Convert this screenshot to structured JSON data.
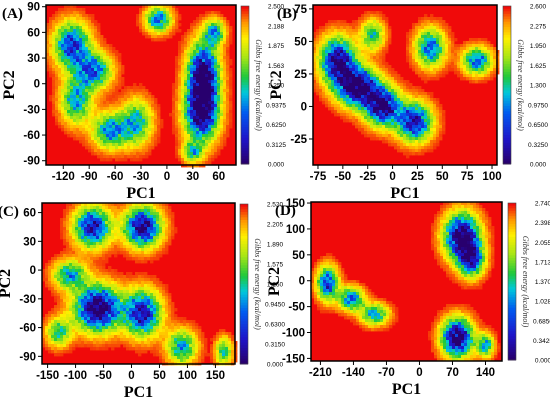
{
  "chart_data": [
    {
      "type": "heatmap",
      "panel_label": "(A)",
      "xlabel": "PC1",
      "ylabel": "PC2",
      "xlim": [
        -140,
        80
      ],
      "ylim": [
        -95,
        92
      ],
      "xticks": [
        -120,
        -90,
        -60,
        -30,
        0,
        30,
        60
      ],
      "yticks": [
        -90,
        -60,
        -30,
        0,
        30,
        60,
        90
      ],
      "colorbar_title": "Gibbs free energy (kcal/mol)",
      "colorbar_ticks": [
        "2.500",
        "2.188",
        "1.875",
        "1.563",
        "1.250",
        "0.9375",
        "0.6250",
        "0.3125",
        "0.000"
      ],
      "vmin": 0,
      "vmax": 2.5,
      "basins": [
        {
          "x": -110,
          "y": 45,
          "sx": 14,
          "sy": 18,
          "depth": 0.8
        },
        {
          "x": -85,
          "y": 15,
          "sx": 14,
          "sy": 14,
          "depth": 0.7
        },
        {
          "x": -105,
          "y": -20,
          "sx": 12,
          "sy": 18,
          "depth": 0.6
        },
        {
          "x": -65,
          "y": -55,
          "sx": 14,
          "sy": 14,
          "depth": 0.65
        },
        {
          "x": -35,
          "y": -45,
          "sx": 12,
          "sy": 18,
          "depth": 0.55
        },
        {
          "x": -10,
          "y": 75,
          "sx": 10,
          "sy": 10,
          "depth": 0.7
        },
        {
          "x": 42,
          "y": 10,
          "sx": 12,
          "sy": 25,
          "depth": 1.1
        },
        {
          "x": 40,
          "y": -35,
          "sx": 13,
          "sy": 22,
          "depth": 1.0
        },
        {
          "x": 55,
          "y": 60,
          "sx": 8,
          "sy": 10,
          "depth": 0.6
        },
        {
          "x": 30,
          "y": -80,
          "sx": 8,
          "sy": 8,
          "depth": 0.5
        }
      ]
    },
    {
      "type": "heatmap",
      "panel_label": "(B)",
      "xlabel": "PC1",
      "ylabel": "PC2",
      "xlim": [
        -80,
        105
      ],
      "ylim": [
        -45,
        78
      ],
      "xticks": [
        -75,
        -50,
        -25,
        0,
        25,
        50,
        75,
        100
      ],
      "yticks": [
        -25,
        0,
        25,
        50,
        75
      ],
      "colorbar_title": "Gibbs free energy (kcal/mol)",
      "colorbar_ticks": [
        "2.600",
        "2.275",
        "1.950",
        "1.625",
        "1.300",
        "0.9750",
        "0.6500",
        "0.3250",
        "0.000"
      ],
      "vmin": 0,
      "vmax": 2.6,
      "basins": [
        {
          "x": -55,
          "y": 35,
          "sx": 12,
          "sy": 12,
          "depth": 1.0
        },
        {
          "x": -35,
          "y": 15,
          "sx": 14,
          "sy": 10,
          "depth": 1.1
        },
        {
          "x": -10,
          "y": 0,
          "sx": 12,
          "sy": 10,
          "depth": 1.0
        },
        {
          "x": 22,
          "y": -12,
          "sx": 12,
          "sy": 10,
          "depth": 0.9
        },
        {
          "x": 38,
          "y": 45,
          "sx": 10,
          "sy": 10,
          "depth": 0.7
        },
        {
          "x": 85,
          "y": 35,
          "sx": 10,
          "sy": 7,
          "depth": 0.7
        },
        {
          "x": -20,
          "y": 55,
          "sx": 8,
          "sy": 8,
          "depth": 0.5
        }
      ]
    },
    {
      "type": "heatmap",
      "panel_label": "(C)",
      "xlabel": "PC1",
      "ylabel": "PC2",
      "xlim": [
        -160,
        185
      ],
      "ylim": [
        -98,
        70
      ],
      "xticks": [
        -150,
        -100,
        -50,
        0,
        50,
        100,
        150
      ],
      "yticks": [
        -90,
        -60,
        -30,
        0,
        30,
        60
      ],
      "colorbar_title": "Gibbs free energy (kcal/mol)",
      "colorbar_ticks": [
        "2.520",
        "2.205",
        "1.890",
        "1.575",
        "1.260",
        "0.9450",
        "0.6300",
        "0.3150",
        "0.000"
      ],
      "vmin": 0,
      "vmax": 2.52,
      "basins": [
        {
          "x": -70,
          "y": 45,
          "sx": 22,
          "sy": 14,
          "depth": 0.9
        },
        {
          "x": 20,
          "y": 45,
          "sx": 22,
          "sy": 14,
          "depth": 1.0
        },
        {
          "x": -110,
          "y": -5,
          "sx": 20,
          "sy": 10,
          "depth": 0.6
        },
        {
          "x": -60,
          "y": -40,
          "sx": 28,
          "sy": 16,
          "depth": 1.1
        },
        {
          "x": 20,
          "y": -45,
          "sx": 22,
          "sy": 16,
          "depth": 0.9
        },
        {
          "x": -130,
          "y": -65,
          "sx": 15,
          "sy": 10,
          "depth": 0.5
        },
        {
          "x": 90,
          "y": -80,
          "sx": 18,
          "sy": 12,
          "depth": 0.6
        },
        {
          "x": 165,
          "y": -85,
          "sx": 10,
          "sy": 10,
          "depth": 0.5
        }
      ]
    },
    {
      "type": "heatmap",
      "panel_label": "(D)",
      "xlabel": "PC1",
      "ylabel": "PC2",
      "xlim": [
        -230,
        175
      ],
      "ylim": [
        -155,
        152
      ],
      "xticks": [
        -210,
        -140,
        -70,
        0,
        70,
        140
      ],
      "yticks": [
        -150,
        -100,
        -50,
        0,
        50,
        100,
        150
      ],
      "colorbar_title": "Gibbs free energy (kcal/mol)",
      "colorbar_ticks": [
        "2.740",
        "2.398",
        "2.055",
        "1.713",
        "1.370",
        "1.028",
        "0.6850",
        "0.3425",
        "0.000"
      ],
      "vmin": 0,
      "vmax": 2.74,
      "basins": [
        {
          "x": 90,
          "y": 85,
          "sx": 25,
          "sy": 30,
          "depth": 1.1
        },
        {
          "x": 110,
          "y": 40,
          "sx": 18,
          "sy": 22,
          "depth": 0.8
        },
        {
          "x": -195,
          "y": -5,
          "sx": 15,
          "sy": 22,
          "depth": 0.8
        },
        {
          "x": -145,
          "y": -35,
          "sx": 18,
          "sy": 15,
          "depth": 0.7
        },
        {
          "x": -95,
          "y": -65,
          "sx": 20,
          "sy": 14,
          "depth": 0.6
        },
        {
          "x": 80,
          "y": -110,
          "sx": 22,
          "sy": 25,
          "depth": 1.1
        },
        {
          "x": 140,
          "y": -125,
          "sx": 12,
          "sy": 15,
          "depth": 0.6
        }
      ]
    }
  ]
}
